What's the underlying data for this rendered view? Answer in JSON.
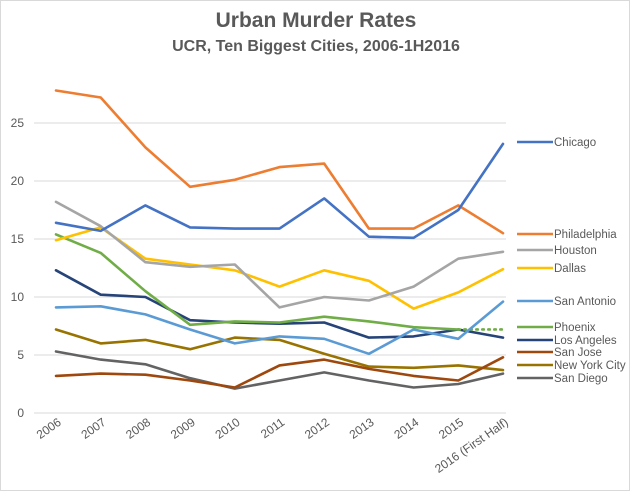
{
  "chart_data": {
    "type": "line",
    "title": "Urban Murder Rates",
    "subtitle": "UCR, Ten Biggest Cities, 2006-1H2016",
    "xlabel": "",
    "ylabel": "",
    "ylim": [
      0,
      28
    ],
    "yticks": [
      0,
      5,
      10,
      15,
      20,
      25
    ],
    "grid": true,
    "legend_position": "right",
    "categories": [
      "2006",
      "2007",
      "2008",
      "2009",
      "2010",
      "2011",
      "2012",
      "2013",
      "2014",
      "2015",
      "2016 (First Half)"
    ],
    "series": [
      {
        "name": "Chicago",
        "color": "#4472c4",
        "values": [
          16.4,
          15.7,
          17.9,
          16.0,
          15.9,
          15.9,
          18.5,
          15.2,
          15.1,
          17.5,
          23.2
        ]
      },
      {
        "name": "Philadelphia",
        "color": "#ed7d31",
        "values": [
          27.8,
          27.2,
          22.9,
          19.5,
          20.1,
          21.2,
          21.5,
          15.9,
          15.9,
          17.9,
          15.5
        ]
      },
      {
        "name": "Houston",
        "color": "#a5a5a5",
        "values": [
          18.2,
          16.1,
          13.0,
          12.6,
          12.8,
          9.1,
          10.0,
          9.7,
          10.9,
          13.3,
          13.9
        ]
      },
      {
        "name": "Dallas",
        "color": "#ffc000",
        "values": [
          14.9,
          16.0,
          13.3,
          12.8,
          12.3,
          10.9,
          12.3,
          11.4,
          9.0,
          10.4,
          12.4
        ]
      },
      {
        "name": "San Antonio",
        "color": "#5b9bd5",
        "values": [
          9.1,
          9.2,
          8.5,
          7.2,
          6.0,
          6.6,
          6.4,
          5.1,
          7.2,
          6.4,
          9.6
        ]
      },
      {
        "name": "Phoenix",
        "color": "#70ad47",
        "values": [
          15.4,
          13.8,
          10.5,
          7.6,
          7.9,
          7.8,
          8.3,
          7.9,
          7.4,
          7.2,
          7.2
        ],
        "dotted_last_segment": true
      },
      {
        "name": "Los Angeles",
        "color": "#264478",
        "values": [
          12.3,
          10.2,
          10.0,
          8.0,
          7.8,
          7.7,
          7.8,
          6.5,
          6.6,
          7.2,
          6.5
        ]
      },
      {
        "name": "San Jose",
        "color": "#9e480e",
        "values": [
          3.2,
          3.4,
          3.3,
          2.8,
          2.2,
          4.1,
          4.6,
          3.8,
          3.2,
          2.8,
          4.8
        ]
      },
      {
        "name": "New York City",
        "color": "#997300",
        "values": [
          7.2,
          6.0,
          6.3,
          5.5,
          6.5,
          6.3,
          5.1,
          4.0,
          3.9,
          4.1,
          3.7
        ]
      },
      {
        "name": "San Diego",
        "color": "#636363",
        "values": [
          5.3,
          4.6,
          4.2,
          3.0,
          2.1,
          2.8,
          3.5,
          2.8,
          2.2,
          2.5,
          3.4
        ]
      }
    ]
  }
}
